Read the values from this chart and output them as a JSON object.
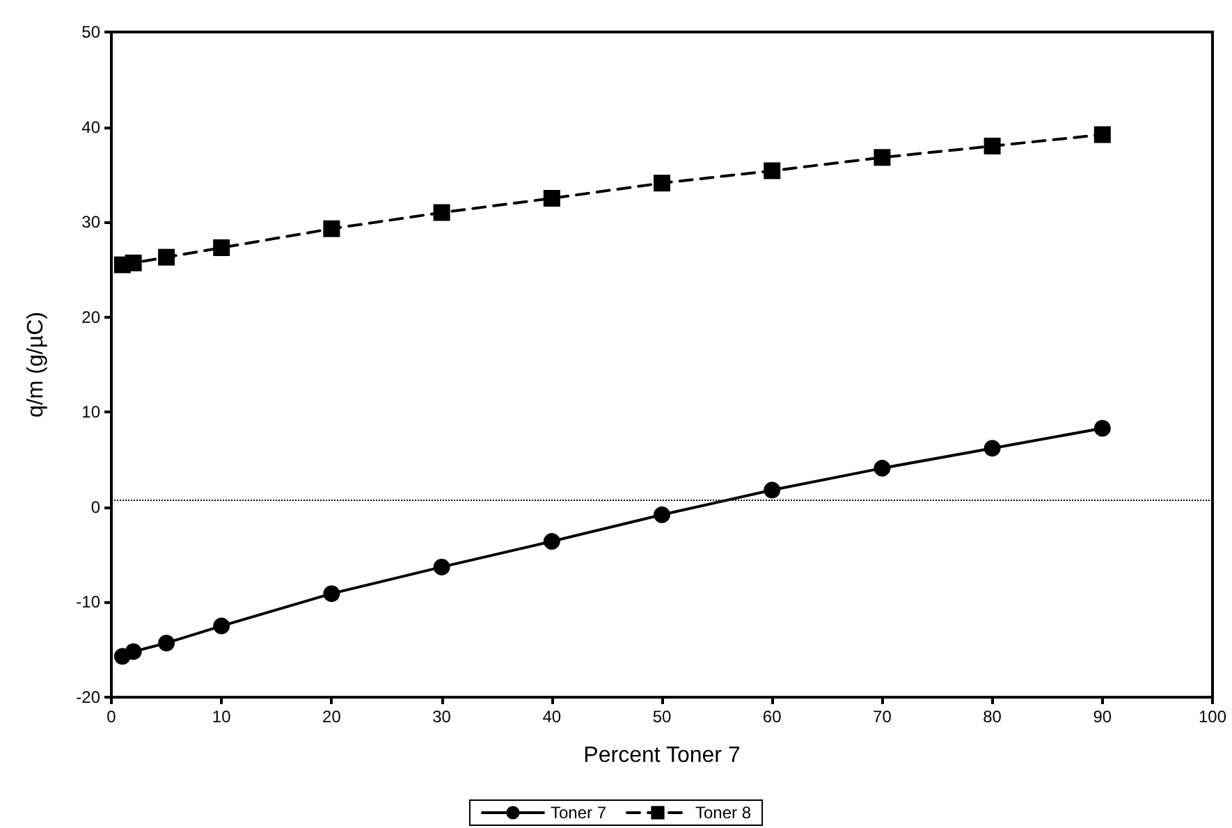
{
  "chart_data": {
    "type": "line",
    "xlabel": "Percent Toner 7",
    "ylabel": "q/m (g/µC)",
    "x": [
      1,
      2,
      5,
      10,
      20,
      30,
      40,
      50,
      60,
      70,
      80,
      90
    ],
    "series": [
      {
        "name": "Toner 7",
        "color": "#000000",
        "marker": "circle",
        "line_style": "solid",
        "values": [
          -15.7,
          -15.2,
          -14.3,
          -12.5,
          -9.1,
          -6.3,
          -3.6,
          -0.8,
          1.8,
          4.1,
          6.2,
          8.3
        ]
      },
      {
        "name": "Toner 8",
        "color": "#000000",
        "marker": "square",
        "line_style": "dashed",
        "values": [
          25.5,
          25.7,
          26.3,
          27.3,
          29.3,
          31.0,
          32.5,
          34.1,
          35.4,
          36.8,
          38.0,
          39.2
        ]
      }
    ],
    "xlim": [
      0,
      100
    ],
    "xticks": [
      0,
      10,
      20,
      30,
      40,
      50,
      60,
      70,
      80,
      90,
      100
    ],
    "ylim": [
      -20,
      50
    ],
    "yticks": [
      -20,
      -10,
      0,
      10,
      20,
      30,
      40,
      50
    ],
    "ref_lines": [
      {
        "axis": "y",
        "value": 0.8,
        "line_style": "dotted",
        "color": "#000000"
      }
    ],
    "grid": false,
    "legend": "bottom"
  }
}
